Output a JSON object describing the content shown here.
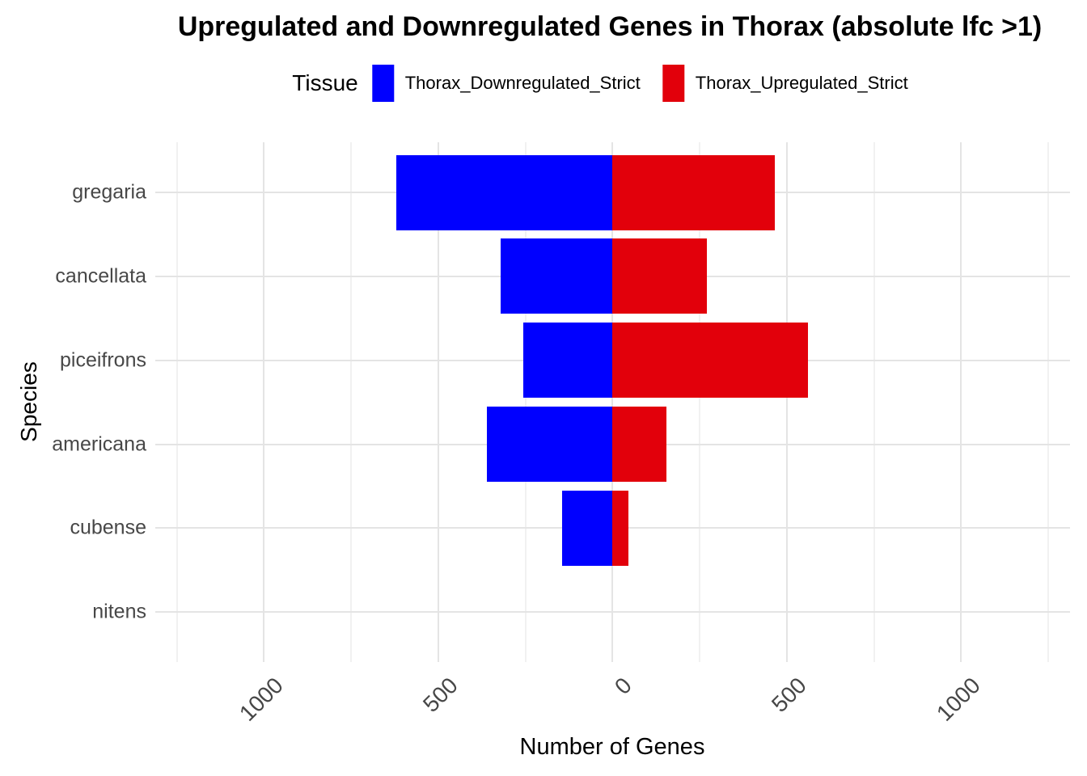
{
  "title": "Upregulated and Downregulated Genes in Thorax (absolute lfc >1)",
  "legend": {
    "title": "Tissue",
    "items": [
      {
        "label": "Thorax_Downregulated_Strict",
        "color": "#0000FF"
      },
      {
        "label": "Thorax_Upregulated_Strict",
        "color": "#E2000B"
      }
    ]
  },
  "x_axis": {
    "label": "Number of Genes",
    "tick_labels": [
      "1000",
      "500",
      "0",
      "500",
      "1000"
    ],
    "tick_values": [
      -1000,
      -500,
      0,
      500,
      1000
    ]
  },
  "y_axis": {
    "label": "Species"
  },
  "chart_data": {
    "type": "bar",
    "orientation": "horizontal-diverging",
    "title": "Upregulated and Downregulated Genes in Thorax (absolute lfc >1)",
    "xlabel": "Number of Genes",
    "ylabel": "Species",
    "categories": [
      "gregaria",
      "cancellata",
      "piceifrons",
      "americana",
      "cubense",
      "nitens"
    ],
    "series": [
      {
        "name": "Thorax_Downregulated_Strict",
        "color": "#0000FF",
        "direction": "negative",
        "values": [
          620,
          320,
          255,
          360,
          145,
          0
        ]
      },
      {
        "name": "Thorax_Upregulated_Strict",
        "color": "#E2000B",
        "direction": "positive",
        "values": [
          465,
          270,
          560,
          155,
          45,
          0
        ]
      }
    ],
    "xlim": [
      -1250,
      1250
    ],
    "x_major_ticks": [
      -1000,
      -500,
      0,
      500,
      1000
    ],
    "x_minor_ticks": [
      -1250,
      -750,
      -250,
      250,
      750,
      1250
    ],
    "grid": true,
    "legend_position": "top"
  }
}
